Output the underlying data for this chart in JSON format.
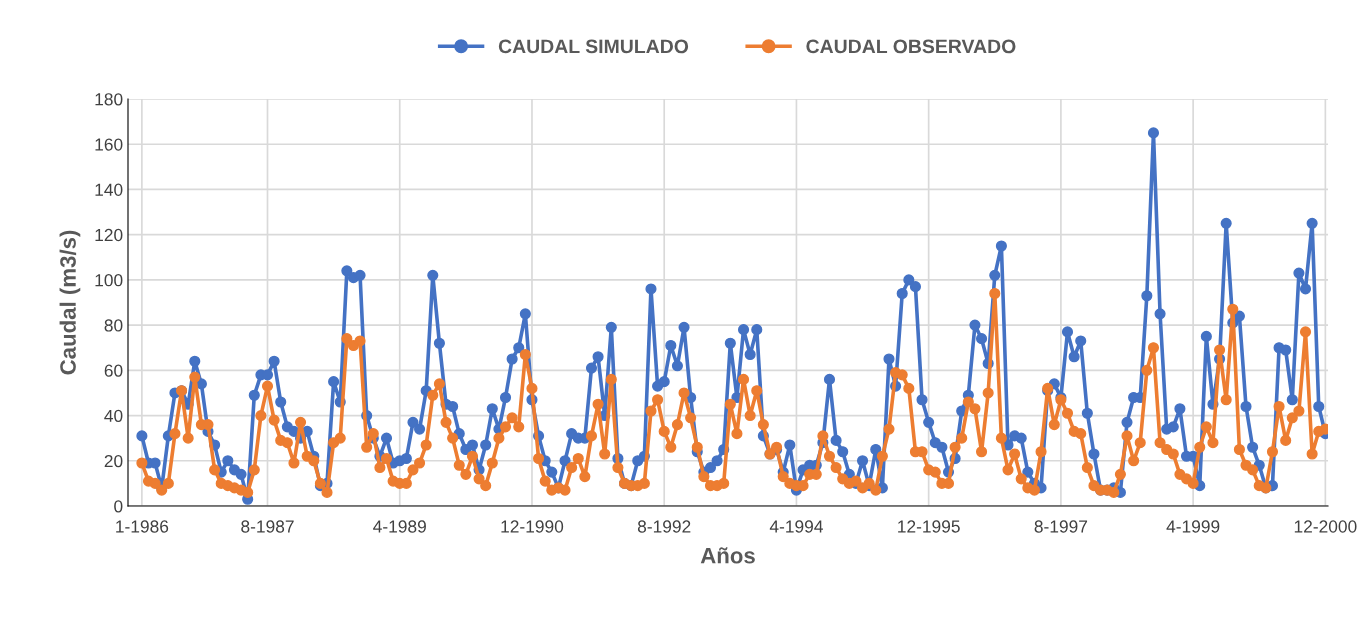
{
  "chart_data": {
    "type": "line",
    "xlabel": "Años",
    "ylabel": "Caudal (m3/s)",
    "categories": [
      "1-1986",
      null,
      null,
      null,
      null,
      null,
      null,
      null,
      null,
      null,
      null,
      null,
      null,
      null,
      null,
      null,
      null,
      null,
      null,
      "8-1987",
      null,
      null,
      null,
      null,
      null,
      null,
      null,
      null,
      null,
      null,
      null,
      null,
      null,
      null,
      null,
      null,
      null,
      null,
      null,
      "4-1989",
      null,
      null,
      null,
      null,
      null,
      null,
      null,
      null,
      null,
      null,
      null,
      null,
      null,
      null,
      null,
      null,
      null,
      null,
      null,
      "12-1990",
      null,
      null,
      null,
      null,
      null,
      null,
      null,
      null,
      null,
      null,
      null,
      null,
      null,
      null,
      null,
      null,
      null,
      null,
      null,
      "8-1992",
      null,
      null,
      null,
      null,
      null,
      null,
      null,
      null,
      null,
      null,
      null,
      null,
      null,
      null,
      null,
      null,
      null,
      null,
      null,
      "4-1994",
      null,
      null,
      null,
      null,
      null,
      null,
      null,
      null,
      null,
      null,
      null,
      null,
      null,
      null,
      null,
      null,
      null,
      null,
      null,
      "12-1995",
      null,
      null,
      null,
      null,
      null,
      null,
      null,
      null,
      null,
      null,
      null,
      null,
      null,
      null,
      null,
      null,
      null,
      null,
      null,
      "8-1997",
      null,
      null,
      null,
      null,
      null,
      null,
      null,
      null,
      null,
      null,
      null,
      null,
      null,
      null,
      null,
      null,
      null,
      null,
      null,
      "4-1999",
      null,
      null,
      null,
      null,
      null,
      null,
      null,
      null,
      null,
      null,
      null,
      null,
      null,
      null,
      null,
      null,
      null,
      null,
      null,
      "12-2000"
    ],
    "series": [
      {
        "name": "CAUDAL SIMULADO",
        "color": "#4472c4",
        "values": [
          31,
          19,
          19,
          8,
          31,
          50,
          51,
          45,
          64,
          54,
          33,
          27,
          15,
          20,
          16,
          14,
          3,
          49,
          58,
          58,
          64,
          46,
          35,
          33,
          30,
          33,
          22,
          9,
          10,
          55,
          46,
          104,
          101,
          102,
          40,
          30,
          22,
          30,
          19,
          20,
          21,
          37,
          34,
          51,
          102,
          72,
          45,
          44,
          32,
          25,
          27,
          16,
          27,
          43,
          34,
          48,
          65,
          70,
          85,
          47,
          31,
          20,
          15,
          8,
          20,
          32,
          30,
          30,
          61,
          66,
          40,
          79,
          21,
          10,
          9,
          20,
          22,
          96,
          53,
          55,
          71,
          62,
          79,
          48,
          24,
          15,
          17,
          20,
          25,
          72,
          48,
          78,
          67,
          78,
          31,
          23,
          25,
          15,
          27,
          7,
          16,
          18,
          18,
          28,
          56,
          29,
          24,
          14,
          10,
          20,
          9,
          25,
          8,
          65,
          53,
          94,
          100,
          97,
          47,
          37,
          28,
          26,
          15,
          21,
          42,
          49,
          80,
          74,
          63,
          102,
          115,
          27,
          31,
          30,
          15,
          10,
          8,
          51,
          54,
          48,
          77,
          66,
          73,
          41,
          23,
          7,
          7,
          8,
          6,
          37,
          48,
          48,
          93,
          165,
          85,
          34,
          35,
          43,
          22,
          22,
          9,
          75,
          45,
          65,
          125,
          81,
          84,
          44,
          26,
          18,
          8,
          9,
          70,
          69,
          47,
          103,
          96,
          125,
          44,
          32
        ]
      },
      {
        "name": "CAUDAL OBSERVADO",
        "color": "#ed7d31",
        "values": [
          19,
          11,
          10,
          7,
          10,
          32,
          51,
          30,
          57,
          36,
          36,
          16,
          10,
          9,
          8,
          7,
          6,
          16,
          40,
          53,
          38,
          29,
          28,
          19,
          37,
          22,
          20,
          10,
          6,
          28,
          30,
          74,
          71,
          73,
          26,
          32,
          17,
          21,
          11,
          10,
          10,
          16,
          19,
          27,
          49,
          54,
          37,
          30,
          18,
          14,
          22,
          12,
          9,
          19,
          30,
          35,
          39,
          35,
          67,
          52,
          21,
          11,
          7,
          8,
          7,
          17,
          21,
          13,
          31,
          45,
          23,
          56,
          17,
          10,
          9,
          9,
          10,
          42,
          47,
          33,
          26,
          36,
          50,
          39,
          26,
          13,
          9,
          9,
          10,
          45,
          32,
          56,
          40,
          51,
          36,
          23,
          26,
          13,
          10,
          9,
          9,
          14,
          14,
          31,
          22,
          17,
          12,
          10,
          11,
          8,
          10,
          7,
          22,
          34,
          59,
          58,
          52,
          24,
          24,
          16,
          15,
          10,
          10,
          26,
          30,
          46,
          43,
          24,
          50,
          94,
          30,
          16,
          23,
          12,
          8,
          7,
          24,
          52,
          36,
          47,
          41,
          33,
          32,
          17,
          9,
          7,
          7,
          6,
          14,
          31,
          20,
          28,
          60,
          70,
          28,
          25,
          23,
          14,
          12,
          10,
          26,
          35,
          28,
          69,
          47,
          87,
          25,
          18,
          16,
          9,
          8,
          24,
          44,
          29,
          39,
          42,
          77,
          23,
          33,
          34
        ]
      }
    ],
    "ylim": [
      0,
      180
    ],
    "yticks": [
      0,
      20,
      40,
      60,
      80,
      100,
      120,
      140,
      160,
      180
    ],
    "grid": true,
    "legend": "top",
    "marker": "circle",
    "line_style": "solid"
  }
}
